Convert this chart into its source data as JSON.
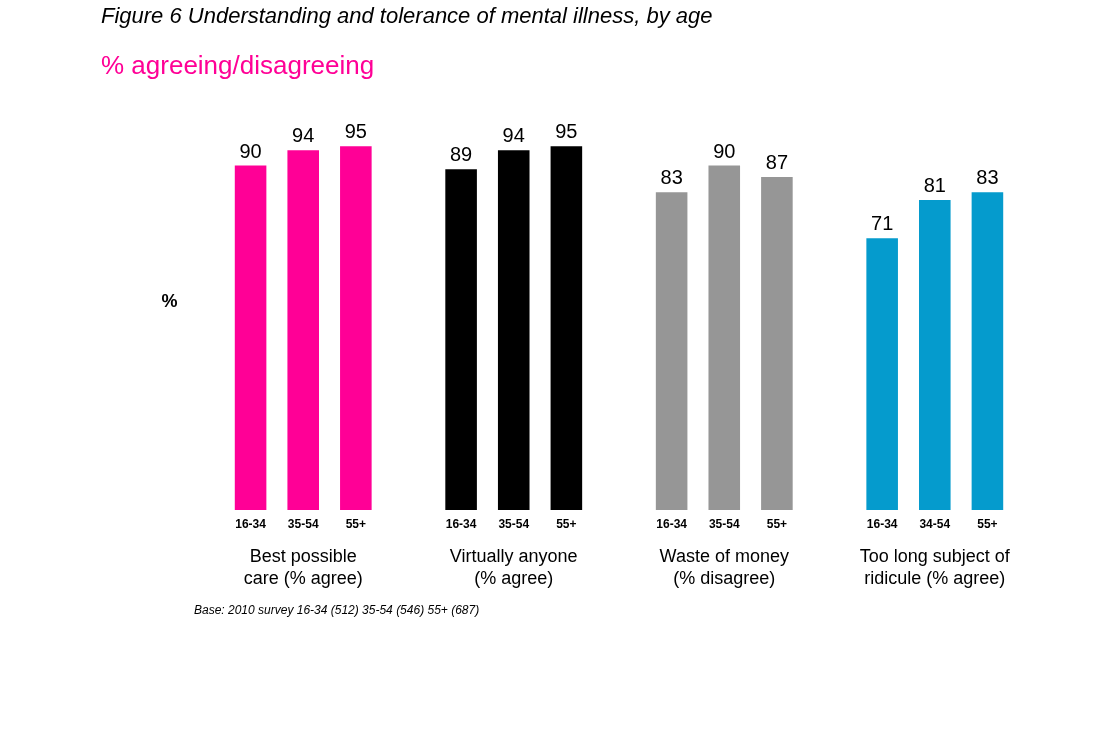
{
  "chart_data": {
    "type": "bar",
    "title": "Figure 6 Understanding and tolerance of mental illness, by age",
    "subtitle": "% agreeing/disagreeing",
    "ylabel": "%",
    "categories": [
      "16-34",
      "35-54",
      "55+",
      "16-34",
      "35-54",
      "55+",
      "16-34",
      "35-54",
      "55+",
      "16-34",
      "34-54",
      "55+"
    ],
    "series": [
      {
        "name": "Best possible\ncare (% agree)",
        "color": "#ff0096",
        "values": [
          90,
          94,
          95,
          null,
          null,
          null,
          null,
          null,
          null,
          null,
          null,
          null
        ]
      },
      {
        "name": "Virtually anyone\n(% agree)",
        "color": "#000000",
        "values": [
          null,
          null,
          null,
          89,
          94,
          95,
          null,
          null,
          null,
          null,
          null,
          null
        ]
      },
      {
        "name": "Waste of money\n(% disagree)",
        "color": "#969696",
        "values": [
          null,
          null,
          null,
          null,
          null,
          null,
          83,
          90,
          87,
          null,
          null,
          null
        ]
      },
      {
        "name": "Too long subject of\nridicule (% agree)",
        "color": "#059bcd",
        "values": [
          null,
          null,
          null,
          null,
          null,
          null,
          null,
          null,
          null,
          71,
          81,
          83
        ]
      }
    ],
    "data_labels": true,
    "grid": false,
    "tick_labels": "x",
    "annotations": [
      "Base: 2010 survey 16-34 (512) 35-54 (546) 55+ (687)"
    ]
  }
}
